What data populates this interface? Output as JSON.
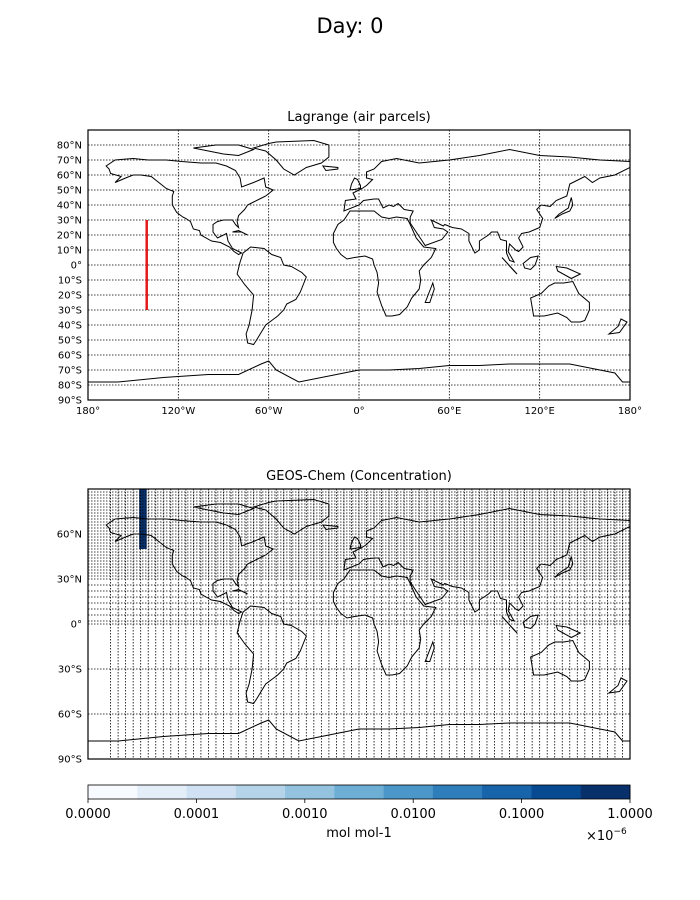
{
  "suptitle": "Day: 0",
  "chart_data": [
    {
      "type": "map",
      "title": "Lagrange (air parcels)",
      "projection": "plate-carree",
      "xlim": [
        -180,
        180
      ],
      "ylim": [
        -90,
        90
      ],
      "grid": true,
      "x_ticks": [
        {
          "lon": -180,
          "label": "180°"
        },
        {
          "lon": -120,
          "label": "120°W"
        },
        {
          "lon": -60,
          "label": "60°W"
        },
        {
          "lon": 0,
          "label": "0°"
        },
        {
          "lon": 60,
          "label": "60°E"
        },
        {
          "lon": 120,
          "label": "120°E"
        },
        {
          "lon": 180,
          "label": "180°"
        }
      ],
      "y_ticks": [
        {
          "lat": 80,
          "label": "80°N"
        },
        {
          "lat": 70,
          "label": "70°N"
        },
        {
          "lat": 60,
          "label": "60°N"
        },
        {
          "lat": 50,
          "label": "50°N"
        },
        {
          "lat": 40,
          "label": "40°N"
        },
        {
          "lat": 30,
          "label": "30°N"
        },
        {
          "lat": 20,
          "label": "20°N"
        },
        {
          "lat": 10,
          "label": "10°N"
        },
        {
          "lat": 0,
          "label": "0°"
        },
        {
          "lat": -10,
          "label": "10°S"
        },
        {
          "lat": -20,
          "label": "20°S"
        },
        {
          "lat": -30,
          "label": "30°S"
        },
        {
          "lat": -40,
          "label": "40°S"
        },
        {
          "lat": -50,
          "label": "50°S"
        },
        {
          "lat": -60,
          "label": "60°S"
        },
        {
          "lat": -70,
          "label": "70°S"
        },
        {
          "lat": -80,
          "label": "80°S"
        },
        {
          "lat": -90,
          "label": "90°S"
        }
      ],
      "parcel_line": {
        "lon": -141,
        "lat_from": -30,
        "lat_to": 30,
        "color": "#e31a1c"
      }
    },
    {
      "type": "heatmap",
      "title": "GEOS-Chem (Concentration)",
      "projection": "plate-carree",
      "xlim": [
        -180,
        180
      ],
      "ylim": [
        -90,
        90
      ],
      "grid": true,
      "y_ticks": [
        {
          "lat": 60,
          "label": "60°N"
        },
        {
          "lat": 30,
          "label": "30°N"
        },
        {
          "lat": 0,
          "label": "0°"
        },
        {
          "lat": -30,
          "label": "30°S"
        },
        {
          "lat": -60,
          "label": "60°S"
        },
        {
          "lat": -90,
          "label": "90°S"
        }
      ],
      "concentration_cell": {
        "lon_from": -146,
        "lon_to": -141,
        "lat_from": 50,
        "lat_to": 90,
        "value": 1.0
      },
      "colorbar": {
        "label": "mol mol-1",
        "multiplier": "×10",
        "multiplier_exponent": "−6",
        "tick_labels": [
          "0.0000",
          "0.0001",
          "0.0010",
          "0.0100",
          "0.1000",
          "1.0000"
        ],
        "colors": [
          "#f7fbff",
          "#e3eef9",
          "#cfe1f2",
          "#b5d4e9",
          "#93c3df",
          "#6daed5",
          "#4b97c9",
          "#2f7ebc",
          "#1764ab",
          "#084a92",
          "#08306b"
        ]
      }
    }
  ]
}
